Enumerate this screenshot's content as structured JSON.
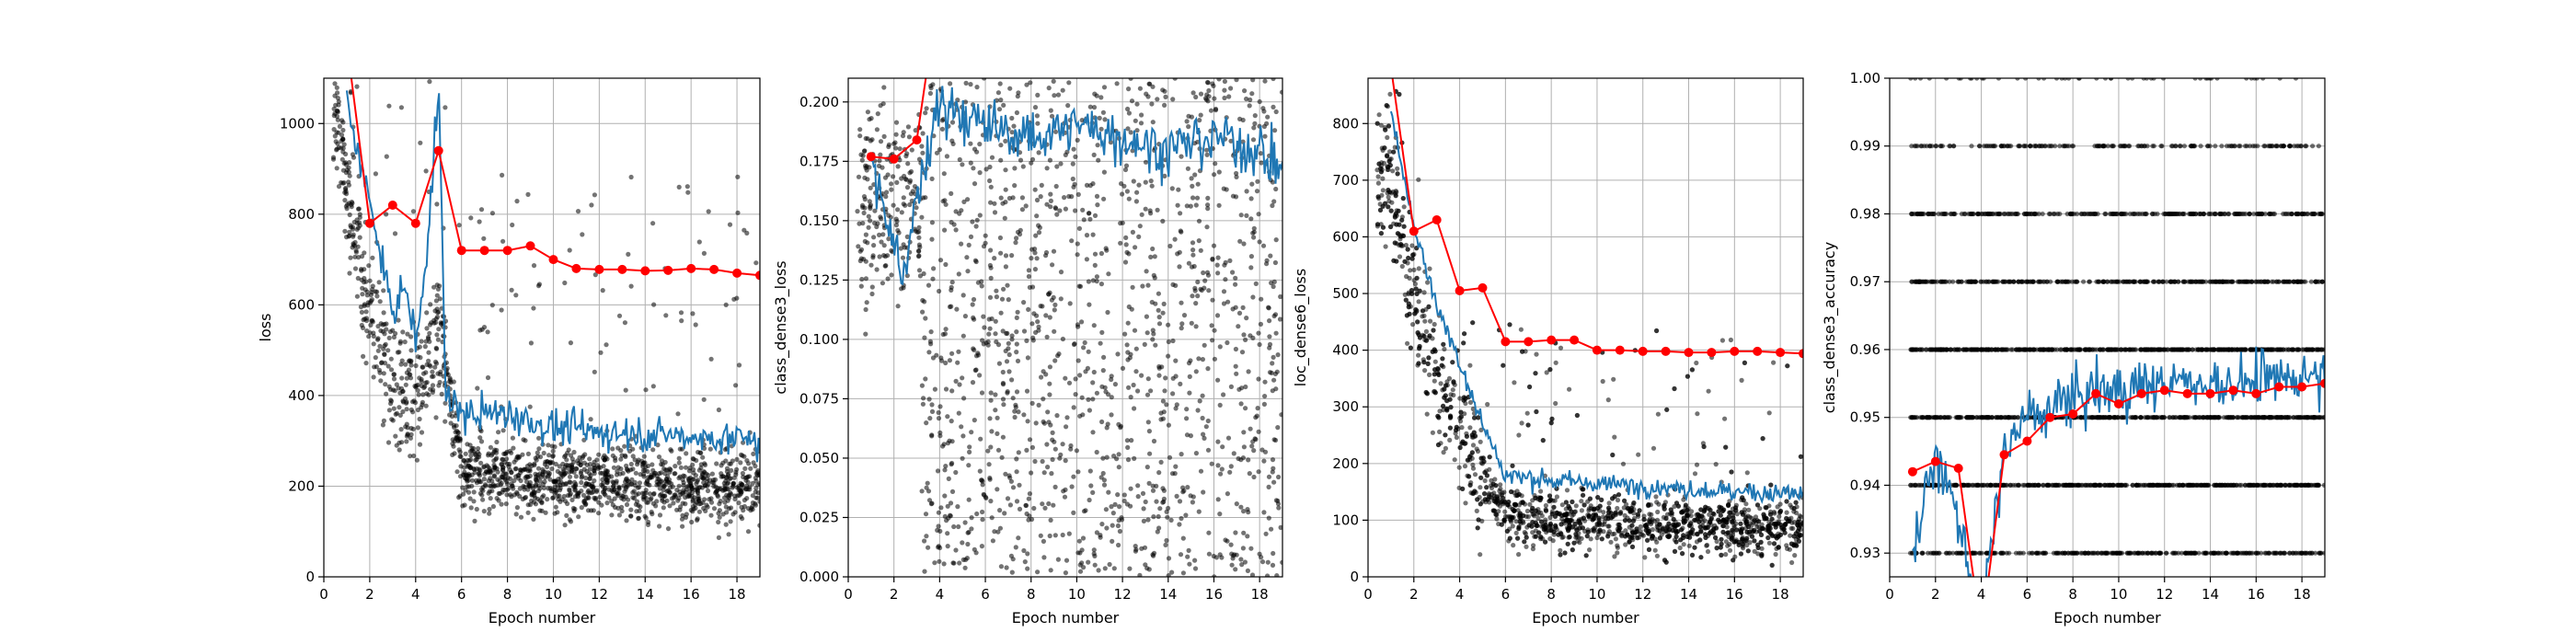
{
  "figure": {
    "background": "#ffffff"
  },
  "colors": {
    "scatter": "#000000",
    "batch_line": "#1f77b4",
    "epoch_line": "#ff0000",
    "grid": "#b0b0b0"
  },
  "chart_data": [
    {
      "type": "line",
      "xlabel": "Epoch number",
      "ylabel": "loss",
      "xlim": [
        0,
        19
      ],
      "ylim": [
        0,
        1100
      ],
      "xticks": [
        0,
        2,
        4,
        6,
        8,
        10,
        12,
        14,
        16,
        18
      ],
      "yticks": [
        0,
        200,
        400,
        600,
        800,
        1000
      ],
      "ytick_labels": [
        "0",
        "200",
        "400",
        "600",
        "800",
        "1000"
      ],
      "grid": true,
      "series": [
        {
          "style": "red line with circle markers",
          "x": [
            1,
            2,
            3,
            4,
            5,
            6,
            7,
            8,
            9,
            10,
            11,
            12,
            13,
            14,
            15,
            16,
            17,
            18,
            19
          ],
          "y": [
            1180,
            780,
            820,
            780,
            940,
            720,
            720,
            720,
            730,
            700,
            680,
            678,
            678,
            675,
            676,
            680,
            678,
            670,
            665
          ]
        },
        {
          "style": "blue line",
          "x": [
            1,
            2,
            3,
            3.5,
            4,
            4.5,
            5,
            5.3,
            6,
            8,
            10,
            12,
            14,
            16,
            18,
            19
          ],
          "y": [
            1050,
            820,
            580,
            650,
            520,
            700,
            1120,
            400,
            360,
            360,
            330,
            320,
            315,
            310,
            305,
            300
          ]
        },
        {
          "style": "black scatter points",
          "density_x": [
            0.5,
            1,
            2,
            3,
            4,
            5,
            6,
            8,
            10,
            12,
            14,
            16,
            18,
            19
          ],
          "center_y": [
            1050,
            850,
            600,
            420,
            380,
            560,
            230,
            220,
            215,
            210,
            205,
            205,
            200,
            200
          ]
        }
      ]
    },
    {
      "type": "line",
      "xlabel": "Epoch number",
      "ylabel": "class_dense3_loss",
      "xlim": [
        0,
        19
      ],
      "ylim": [
        0,
        0.21
      ],
      "xticks": [
        0,
        2,
        4,
        6,
        8,
        10,
        12,
        14,
        16,
        18
      ],
      "yticks": [
        0,
        0.025,
        0.05,
        0.075,
        0.1,
        0.125,
        0.15,
        0.175,
        0.2
      ],
      "ytick_labels": [
        "0.000",
        "0.025",
        "0.050",
        "0.075",
        "0.100",
        "0.125",
        "0.150",
        "0.175",
        "0.200"
      ],
      "grid": true,
      "series": [
        {
          "style": "red line with circle markers",
          "x": [
            1,
            2,
            3,
            4
          ],
          "y": [
            0.177,
            0.176,
            0.184,
            0.25
          ]
        },
        {
          "style": "blue line",
          "x": [
            1,
            2,
            2.5,
            3,
            4,
            6,
            8,
            10,
            12,
            14,
            16,
            18,
            19
          ],
          "y": [
            0.175,
            0.14,
            0.125,
            0.16,
            0.2,
            0.19,
            0.185,
            0.19,
            0.185,
            0.18,
            0.185,
            0.18,
            0.17
          ]
        },
        {
          "style": "black scatter points",
          "center_y": [
            0.16,
            0.14,
            0.1,
            0.09,
            0.09,
            0.09,
            0.09,
            0.09
          ]
        }
      ]
    },
    {
      "type": "line",
      "xlabel": "Epoch number",
      "ylabel": "loc_dense6_loss",
      "xlim": [
        0,
        19
      ],
      "ylim": [
        0,
        880
      ],
      "xticks": [
        0,
        2,
        4,
        6,
        8,
        10,
        12,
        14,
        16,
        18
      ],
      "yticks": [
        0,
        100,
        200,
        300,
        400,
        500,
        600,
        700,
        800
      ],
      "ytick_labels": [
        "0",
        "100",
        "200",
        "300",
        "400",
        "500",
        "600",
        "700",
        "800"
      ],
      "grid": true,
      "series": [
        {
          "style": "red line with circle markers",
          "x": [
            1,
            2,
            3,
            4,
            5,
            6,
            7,
            8,
            9,
            10,
            11,
            12,
            13,
            14,
            15,
            16,
            17,
            18,
            19
          ],
          "y": [
            900,
            610,
            630,
            505,
            510,
            415,
            415,
            418,
            418,
            400,
            400,
            398,
            398,
            396,
            396,
            398,
            398,
            396,
            394
          ]
        },
        {
          "style": "blue line",
          "x": [
            1,
            2,
            3,
            4,
            5,
            6,
            8,
            10,
            12,
            14,
            16,
            18,
            19
          ],
          "y": [
            820,
            620,
            480,
            380,
            270,
            180,
            170,
            165,
            160,
            155,
            150,
            148,
            145
          ]
        },
        {
          "style": "black scatter points",
          "center_y": [
            700,
            500,
            350,
            250,
            180,
            110,
            100,
            95,
            95,
            90,
            90,
            90,
            90
          ]
        }
      ]
    },
    {
      "type": "line",
      "xlabel": "Epoch number",
      "ylabel": "class_dense3_accuracy",
      "xlim": [
        0,
        19
      ],
      "ylim": [
        0.9265,
        1.0
      ],
      "xticks": [
        0,
        2,
        4,
        6,
        8,
        10,
        12,
        14,
        16,
        18
      ],
      "yticks": [
        0.93,
        0.94,
        0.95,
        0.96,
        0.97,
        0.98,
        0.99,
        1.0
      ],
      "ytick_labels": [
        "0.93",
        "0.94",
        "0.95",
        "0.96",
        "0.97",
        "0.98",
        "0.99",
        "1.00"
      ],
      "grid": true,
      "series": [
        {
          "style": "red line with circle markers",
          "x": [
            1,
            2,
            3,
            4,
            5,
            6,
            7,
            8,
            9,
            10,
            11,
            12,
            13,
            14,
            15,
            16,
            17,
            18,
            19
          ],
          "y": [
            0.942,
            0.9435,
            0.9425,
            0.918,
            0.9445,
            0.9465,
            0.95,
            0.9505,
            0.9535,
            0.952,
            0.9535,
            0.954,
            0.9535,
            0.9535,
            0.954,
            0.9535,
            0.9545,
            0.9545,
            0.955
          ]
        },
        {
          "style": "blue line",
          "x": [
            1,
            2,
            3,
            4,
            5,
            6,
            8,
            10,
            12,
            14,
            16,
            18,
            19
          ],
          "y": [
            0.93,
            0.945,
            0.935,
            0.92,
            0.945,
            0.95,
            0.953,
            0.954,
            0.955,
            0.955,
            0.955,
            0.956,
            0.957
          ]
        },
        {
          "style": "black scatter points at discrete levels",
          "levels": [
            0.93,
            0.94,
            0.95,
            0.96,
            0.97,
            0.98,
            0.99,
            1.0
          ]
        }
      ]
    }
  ]
}
